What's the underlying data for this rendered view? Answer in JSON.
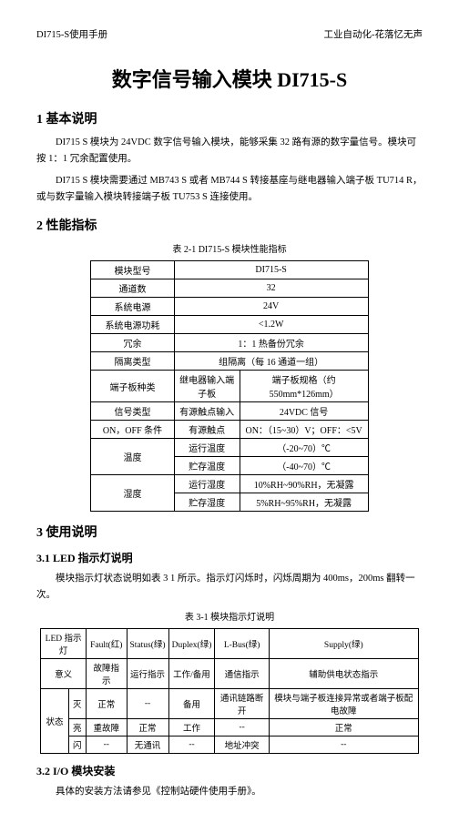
{
  "hdr": {
    "l": "DI715-S使用手册",
    "r": "工业自动化-花落忆无声"
  },
  "title": "数字信号输入模块 DI715-S",
  "s1": {
    "h": "1 基本说明",
    "p1": "DI715 S 模块为 24VDC 数字信号输入模块，能够采集 32 路有源的数字量信号。模块可按 1：1 冗余配置使用。",
    "p2": "DI715 S 模块需要通过 MB743 S 或者 MB744 S 转接基座与继电器输入端子板 TU714 R，或与数字量输入模块转接端子板 TU753 S 连接使用。"
  },
  "s2": {
    "h": "2 性能指标",
    "cap": "表 2-1 DI715-S 模块性能指标"
  },
  "t1": [
    [
      "模块型号",
      "",
      "DI715-S"
    ],
    [
      "通道数",
      "",
      "32"
    ],
    [
      "系统电源",
      "",
      "24V"
    ],
    [
      "系统电源功耗",
      "",
      "<1.2W"
    ],
    [
      "冗余",
      "",
      "1：1 热备份冗余"
    ],
    [
      "隔离类型",
      "",
      "组隔离（每 16 通道一组）"
    ],
    [
      "端子板种类",
      "继电器输入端子板",
      "端子板规格（约 550mm*126mm）"
    ],
    [
      "信号类型",
      "有源触点输入",
      "24VDC 信号"
    ],
    [
      "ON，OFF 条件",
      "有源触点",
      "ON：（15~30）V；OFF：<5V"
    ],
    [
      "温度",
      "运行温度",
      "（-20~70）℃"
    ],
    [
      "",
      "贮存温度",
      "（-40~70）℃"
    ],
    [
      "湿度",
      "运行湿度",
      "10%RH~90%RH，无凝露"
    ],
    [
      "",
      "贮存湿度",
      "5%RH~95%RH，无凝露"
    ]
  ],
  "s3": {
    "h": "3 使用说明",
    "h31": "3.1 LED 指示灯说明",
    "p31": "模块指示灯状态说明如表 3 1 所示。指示灯闪烁时，闪烁周期为 400ms，200ms 翻转一次。",
    "cap": "表 3-1 模块指示灯说明",
    "h32": "3.2 I/O 模块安装",
    "p32": "具体的安装方法请参见《控制站硬件使用手册》。"
  },
  "t2": {
    "h": [
      "LED 指示灯",
      "Fault(红)",
      "Status(绿)",
      "Duplex(绿)",
      "L-Bus(绿)",
      "Supply(绿)"
    ],
    "r": [
      [
        "意义",
        "故障指示",
        "运行指示",
        "工作/备用",
        "通信指示",
        "辅助供电状态指示"
      ],
      [
        "灭",
        "正常",
        "--",
        "备用",
        "通讯链路断开",
        "模块与端子板连接异常或者端子板配电故障"
      ],
      [
        "亮",
        "重故障",
        "正常",
        "工作",
        "--",
        "正常"
      ],
      [
        "闪",
        "--",
        "无通讯",
        "--",
        "地址冲突",
        "--"
      ]
    ],
    "side": "状态"
  }
}
